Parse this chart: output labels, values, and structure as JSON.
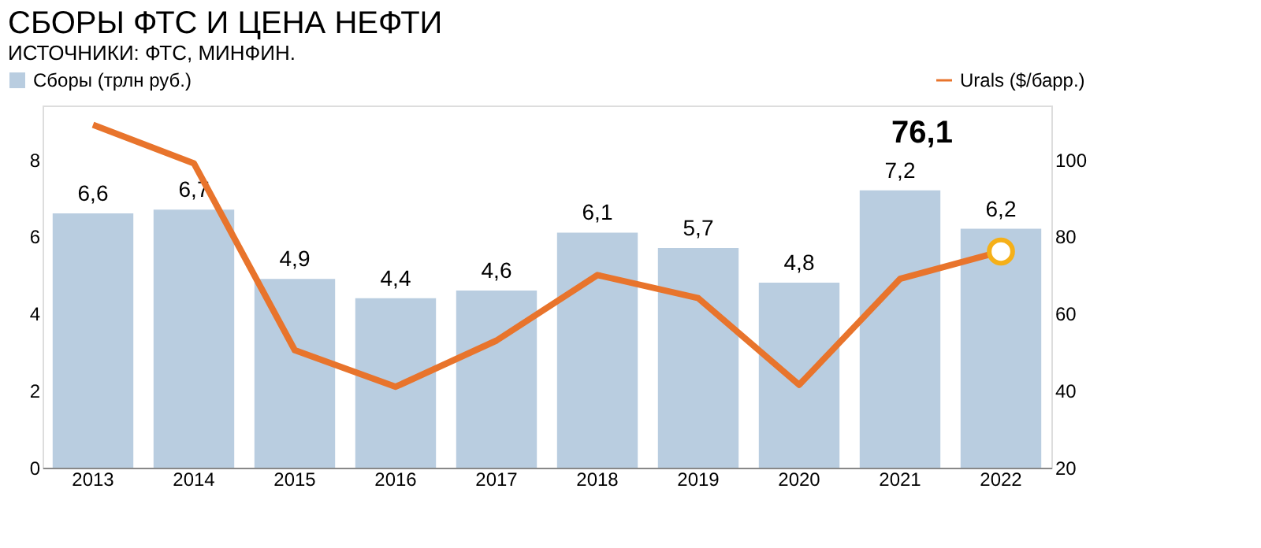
{
  "chart_data": {
    "type": "bar",
    "title": "СБОРЫ ФТС И ЦЕНА НЕФТИ",
    "subtitle": "ИСТОЧНИКИ: ФТС, МИНФИН.",
    "categories": [
      "2013",
      "2014",
      "2015",
      "2016",
      "2017",
      "2018",
      "2019",
      "2020",
      "2021",
      "2022"
    ],
    "series": [
      {
        "name": "Сборы (трлн руб.)",
        "color": "#b9cde0",
        "values": [
          6.6,
          6.7,
          4.9,
          4.4,
          4.6,
          6.1,
          5.7,
          4.8,
          7.2,
          6.2
        ],
        "value_labels": [
          "6,6",
          "6,7",
          "4,9",
          "4,4",
          "4,6",
          "6,1",
          "5,7",
          "4,8",
          "7,2",
          "6,2"
        ]
      },
      {
        "name": "Urals ($/барр.)",
        "type": "line",
        "axis": "y2",
        "color": "#e8742c",
        "values": [
          109,
          99,
          50.5,
          41,
          53,
          70,
          64,
          41.5,
          69,
          76.1
        ]
      },
      {
        "type": "scatter",
        "axis": "y2",
        "color": "#f5b019",
        "marker": "circle",
        "values": [
          null,
          null,
          null,
          null,
          null,
          null,
          null,
          null,
          null,
          76.1
        ]
      }
    ],
    "ylim": [
      0,
      9.4
    ],
    "yticks": [
      0,
      2,
      4,
      6,
      8
    ],
    "y2lim": [
      20,
      114
    ],
    "y2ticks": [
      20,
      40,
      60,
      80,
      100
    ],
    "annotations": [
      "76,1"
    ],
    "grid": false,
    "legend": "top",
    "line_style": "solid"
  }
}
